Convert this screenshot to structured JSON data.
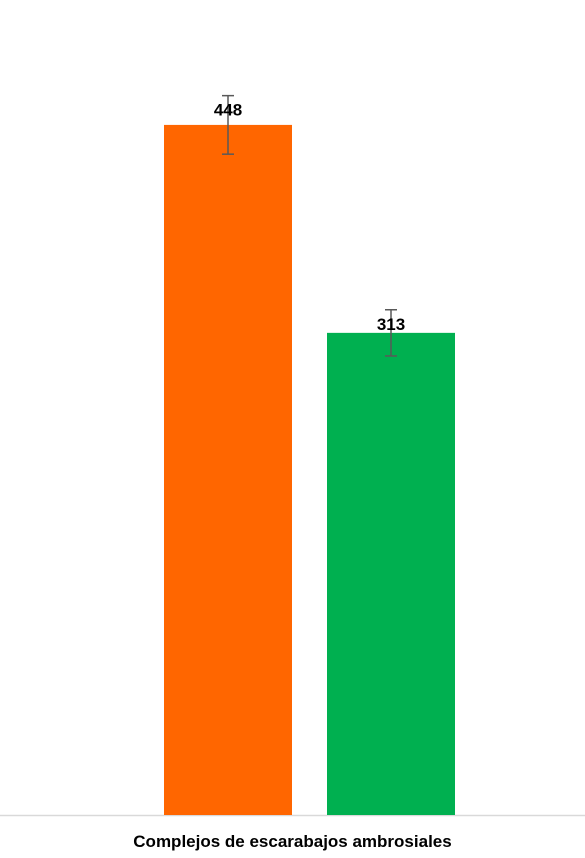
{
  "chart_data": {
    "type": "bar",
    "categories": [
      "",
      ""
    ],
    "values": [
      448,
      313
    ],
    "errors": [
      19,
      15
    ],
    "data_labels": [
      "448",
      "313"
    ],
    "colors": [
      "#FF6600",
      "#00B050"
    ],
    "error_bar_color": "#595959",
    "axis_line_color": "#D9D9D9",
    "title": "",
    "xlabel": "Complejos de escarabajos ambrosiales",
    "ylabel": "",
    "ylim": [
      0,
      520
    ],
    "grid": false,
    "legend": "none"
  }
}
